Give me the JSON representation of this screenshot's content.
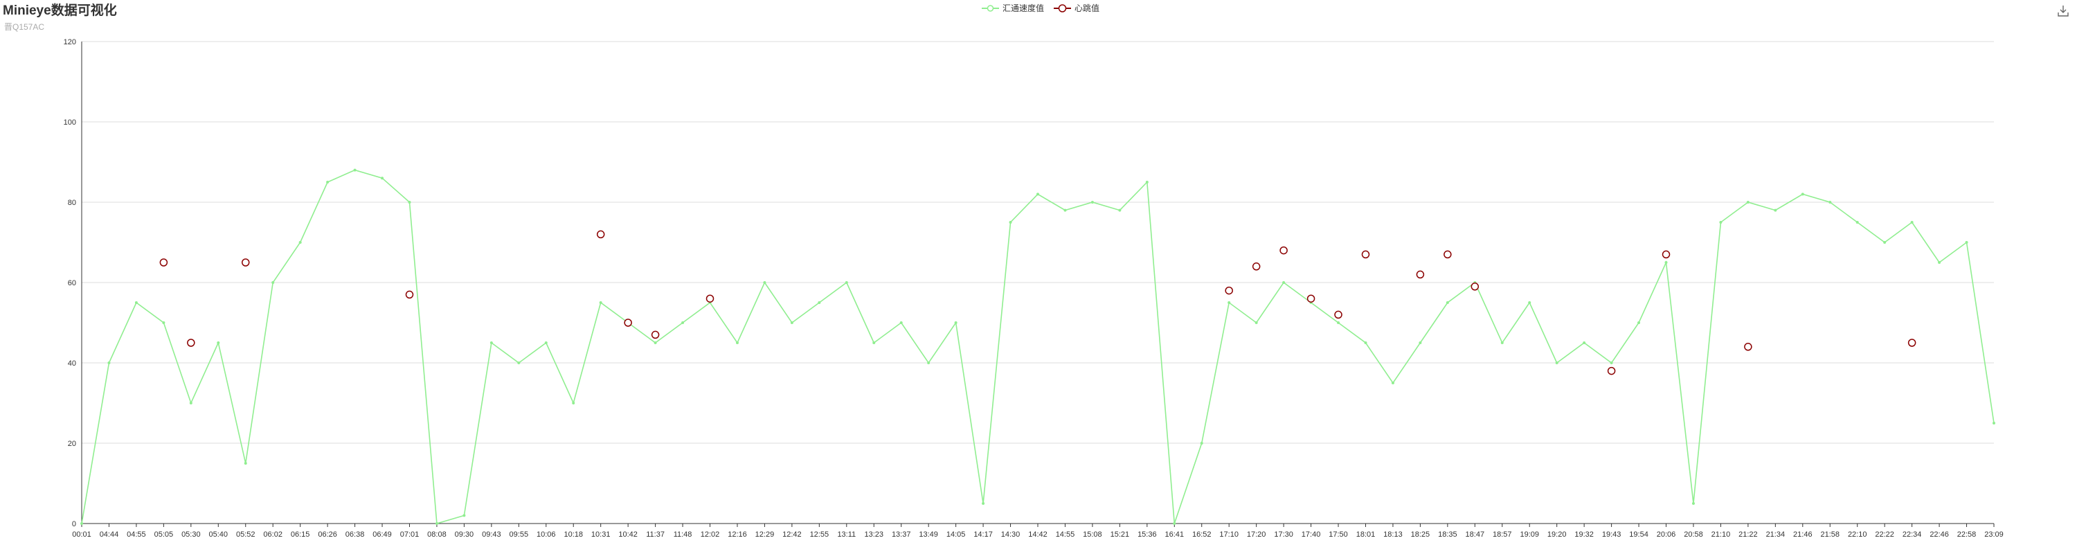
{
  "header": {
    "title": "Minieye数据可视化",
    "subtitle": "晋Q157AC"
  },
  "toolbox": {
    "save_icon": "download-icon"
  },
  "colors": {
    "speed": "#90ee90",
    "heartbeat": "#8b0000",
    "grid": "#dddddd",
    "axis": "#333333"
  },
  "chart_data": {
    "type": "line",
    "title": "Minieye数据可视化",
    "subtitle": "晋Q157AC",
    "legend": [
      "汇通速度值",
      "心跳值"
    ],
    "legend_position": "top-center",
    "ylim": [
      0,
      120
    ],
    "yticks": [
      0,
      20,
      40,
      60,
      80,
      100,
      120
    ],
    "grid": true,
    "categories": [
      "00:01",
      "04:44",
      "04:55",
      "05:05",
      "05:30",
      "05:40",
      "05:52",
      "06:02",
      "06:15",
      "06:26",
      "06:38",
      "06:49",
      "07:01",
      "08:08",
      "09:30",
      "09:43",
      "09:55",
      "10:06",
      "10:18",
      "10:31",
      "10:42",
      "11:37",
      "11:48",
      "12:02",
      "12:16",
      "12:29",
      "12:42",
      "12:55",
      "13:11",
      "13:23",
      "13:37",
      "13:49",
      "14:05",
      "14:17",
      "14:30",
      "14:42",
      "14:55",
      "15:08",
      "15:21",
      "15:36",
      "16:41",
      "16:52",
      "17:10",
      "17:20",
      "17:30",
      "17:40",
      "17:50",
      "18:01",
      "18:13",
      "18:25",
      "18:35",
      "18:47",
      "18:57",
      "19:09",
      "19:20",
      "19:32",
      "19:43",
      "19:54",
      "20:06",
      "20:58",
      "21:10",
      "21:22",
      "21:34",
      "21:46",
      "21:58",
      "22:10",
      "22:22",
      "22:34",
      "22:46",
      "22:58",
      "23:09"
    ],
    "series": [
      {
        "name": "汇通速度值",
        "kind": "line",
        "values": [
          0,
          40,
          55,
          50,
          30,
          45,
          15,
          60,
          70,
          85,
          88,
          86,
          80,
          0,
          2,
          45,
          40,
          45,
          30,
          55,
          50,
          45,
          50,
          55,
          45,
          60,
          50,
          55,
          60,
          45,
          50,
          40,
          50,
          5,
          75,
          82,
          78,
          80,
          78,
          85,
          0,
          20,
          55,
          50,
          60,
          55,
          50,
          45,
          35,
          45,
          55,
          60,
          45,
          55,
          40,
          45,
          40,
          50,
          65,
          5,
          75,
          80,
          78,
          82,
          80,
          75,
          70,
          75,
          65,
          70,
          25
        ]
      },
      {
        "name": "心跳值",
        "kind": "points",
        "points": [
          {
            "x": "05:05",
            "y": 65
          },
          {
            "x": "05:30",
            "y": 45
          },
          {
            "x": "05:52",
            "y": 65
          },
          {
            "x": "07:01",
            "y": 57
          },
          {
            "x": "10:31",
            "y": 72
          },
          {
            "x": "10:42",
            "y": 50
          },
          {
            "x": "11:37",
            "y": 47
          },
          {
            "x": "12:02",
            "y": 56
          },
          {
            "x": "17:10",
            "y": 58
          },
          {
            "x": "17:20",
            "y": 64
          },
          {
            "x": "17:30",
            "y": 68
          },
          {
            "x": "17:40",
            "y": 56
          },
          {
            "x": "17:50",
            "y": 52
          },
          {
            "x": "18:01",
            "y": 67
          },
          {
            "x": "18:25",
            "y": 62
          },
          {
            "x": "18:35",
            "y": 67
          },
          {
            "x": "18:47",
            "y": 59
          },
          {
            "x": "19:43",
            "y": 38
          },
          {
            "x": "20:06",
            "y": 67
          },
          {
            "x": "21:22",
            "y": 44
          },
          {
            "x": "22:34",
            "y": 45
          }
        ]
      }
    ]
  }
}
